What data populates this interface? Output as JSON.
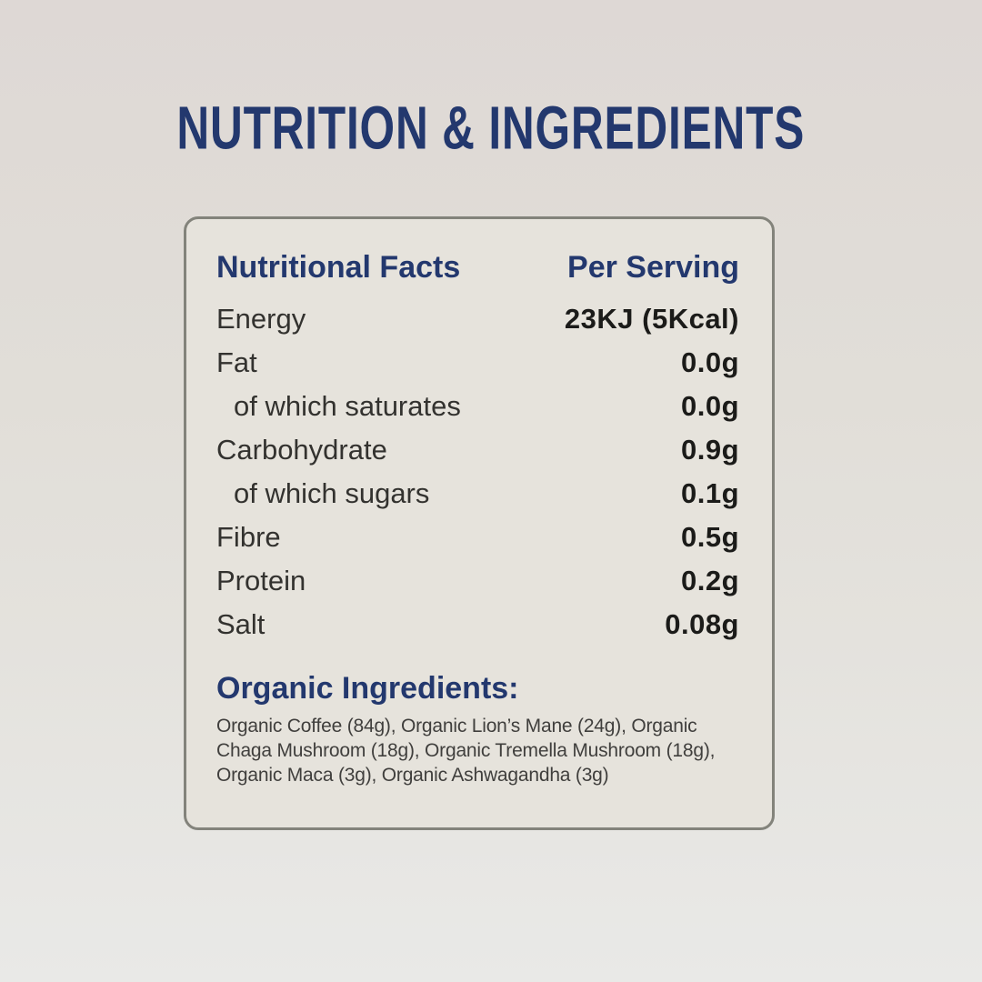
{
  "page": {
    "title": "NUTRITION & INGREDIENTS"
  },
  "colors": {
    "navy_heading": "#23386e",
    "label_text": "#33322f",
    "value_text": "#1b1b19",
    "panel_border": "#83837b",
    "panel_background": "#e6e3dc",
    "background_top": "#ded8d5",
    "background_bottom": "#e9e9e7"
  },
  "panel": {
    "header": {
      "left": "Nutritional Facts",
      "right": "Per Serving"
    },
    "rows": [
      {
        "label": "Energy",
        "value": "23KJ (5Kcal)"
      },
      {
        "label": "Fat",
        "value": "0.0g"
      },
      {
        "label": "of which saturates",
        "value": "0.0g"
      },
      {
        "label": "Carbohydrate",
        "value": "0.9g"
      },
      {
        "label": "of which sugars",
        "value": "0.1g"
      },
      {
        "label": "Fibre",
        "value": "0.5g"
      },
      {
        "label": "Protein",
        "value": "0.2g"
      },
      {
        "label": "Salt",
        "value": "0.08g"
      }
    ],
    "ingredients": {
      "heading": "Organic Ingredients:",
      "text": "Organic Coffee (84g), Organic Lion’s Mane (24g), Organic Chaga Mushroom (18g), Organic Tremella Mushroom (18g), Organic Maca (3g), Organic Ashwagandha (3g)"
    }
  }
}
